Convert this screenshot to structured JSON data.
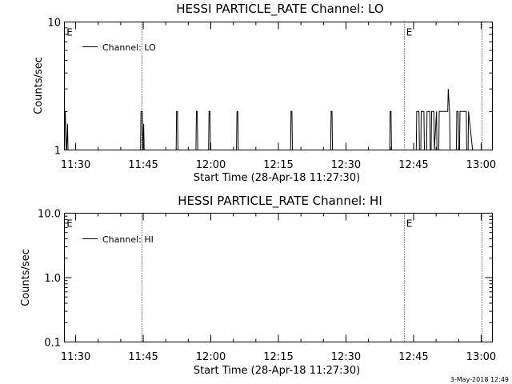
{
  "footer_date": "3-May-2018 12:49",
  "chart_data": [
    {
      "type": "line",
      "title": "HESSI PARTICLE_RATE Channel: LO",
      "xlabel": "Start Time (28-Apr-18 11:27:30)",
      "ylabel": "Counts/sec",
      "x_unit": "minutes after 11:27:30",
      "xlim": [
        0,
        95
      ],
      "y_scale": "log",
      "ylim": [
        1,
        10
      ],
      "x_ticks": [
        {
          "at": 2.5,
          "label": "11:30"
        },
        {
          "at": 17.5,
          "label": "11:45"
        },
        {
          "at": 32.5,
          "label": "12:00"
        },
        {
          "at": 47.5,
          "label": "12:15"
        },
        {
          "at": 62.5,
          "label": "12:30"
        },
        {
          "at": 77.5,
          "label": "12:45"
        },
        {
          "at": 92.5,
          "label": "13:00"
        }
      ],
      "y_ticks": [
        {
          "at": 1,
          "label": "1"
        },
        {
          "at": 10,
          "label": "10"
        }
      ],
      "event_lines": [
        17.2,
        75.5,
        92.7
      ],
      "markers": [
        {
          "text": "E",
          "x": 0.3
        },
        {
          "text": "E",
          "x": 75.7
        }
      ],
      "legend": {
        "label": "Channel: LO",
        "position": "top-left"
      },
      "series": [
        {
          "name": "Channel: LO",
          "x": [
            0,
            0.1,
            0.2,
            0.4,
            0.5,
            0.7,
            0.8,
            16.9,
            17.0,
            17.3,
            17.4,
            17.6,
            17.7,
            24.8,
            24.9,
            25.1,
            25.2,
            29.2,
            29.3,
            29.5,
            29.6,
            32.0,
            32.1,
            32.3,
            32.4,
            38.2,
            38.3,
            38.5,
            38.6,
            50.2,
            50.3,
            50.5,
            50.6,
            59.1,
            59.2,
            59.4,
            59.5,
            72.2,
            72.3,
            72.5,
            72.6,
            78.1,
            78.2,
            78.7,
            78.8,
            79.1,
            79.2,
            79.8,
            79.9,
            80.4,
            80.5,
            81.1,
            81.2,
            81.4,
            81.5,
            82.0,
            82.1,
            82.6,
            82.7,
            83.1,
            83.2,
            85.1,
            85.2,
            85.5,
            85.6,
            87.0,
            87.1,
            87.4,
            87.5,
            87.7,
            87.8,
            89.2,
            89.3,
            89.6,
            89.7,
            90.6
          ],
          "y": [
            1,
            2,
            2,
            1,
            1,
            1.6,
            1,
            1,
            2,
            2,
            1,
            1.6,
            1,
            1,
            2,
            2,
            1,
            1,
            2,
            2,
            1,
            1,
            2,
            2,
            1,
            1,
            2,
            2,
            1,
            1,
            2,
            2,
            1,
            1,
            2,
            2,
            1,
            1,
            2,
            2,
            1,
            1,
            2,
            2,
            1,
            1,
            2,
            2,
            1,
            1,
            2,
            2,
            1,
            1,
            2,
            2,
            1,
            2,
            1,
            1,
            2,
            2,
            3,
            2,
            1,
            1,
            2,
            2,
            1,
            1,
            2,
            2,
            1,
            1,
            2,
            1
          ]
        }
      ]
    },
    {
      "type": "line",
      "title": "HESSI PARTICLE_RATE Channel: HI",
      "xlabel": "Start Time (28-Apr-18 11:27:30)",
      "ylabel": "Counts/sec",
      "x_unit": "minutes after 11:27:30",
      "xlim": [
        0,
        95
      ],
      "y_scale": "log",
      "ylim": [
        0.1,
        10
      ],
      "x_ticks": [
        {
          "at": 2.5,
          "label": "11:30"
        },
        {
          "at": 17.5,
          "label": "11:45"
        },
        {
          "at": 32.5,
          "label": "12:00"
        },
        {
          "at": 47.5,
          "label": "12:15"
        },
        {
          "at": 62.5,
          "label": "12:30"
        },
        {
          "at": 77.5,
          "label": "12:45"
        },
        {
          "at": 92.5,
          "label": "13:00"
        }
      ],
      "y_ticks": [
        {
          "at": 0.1,
          "label": "0.1"
        },
        {
          "at": 1,
          "label": "1.0"
        },
        {
          "at": 10,
          "label": "10.0"
        }
      ],
      "event_lines": [
        17.2,
        75.5,
        92.7
      ],
      "markers": [
        {
          "text": "E",
          "x": 0.3
        },
        {
          "text": "E",
          "x": 75.7
        }
      ],
      "legend": {
        "label": "Channel: HI",
        "position": "top-left"
      },
      "series": [
        {
          "name": "Channel: HI",
          "x": [],
          "y": []
        }
      ]
    }
  ]
}
